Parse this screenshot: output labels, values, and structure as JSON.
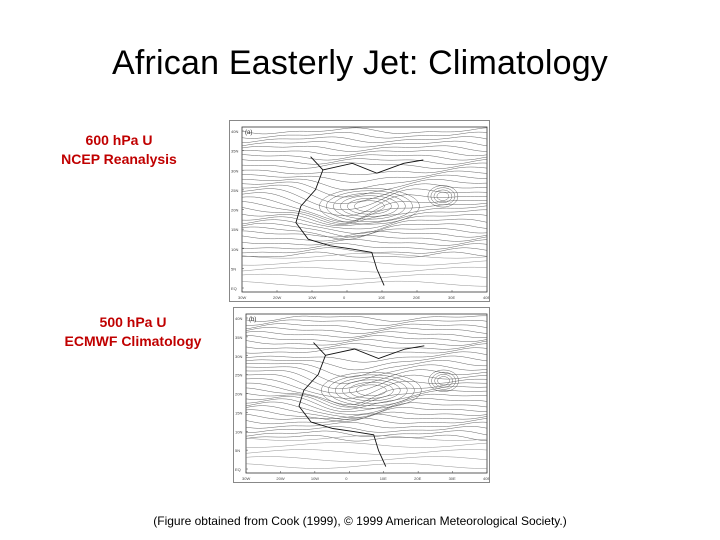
{
  "slide": {
    "title": "African Easterly Jet: Climatology",
    "caption": "(Figure obtained from Cook (1999), © 1999 American Meteorological Society.)"
  },
  "panels": [
    {
      "label_line1": "600 hPa U",
      "label_line2": "NCEP Reanalysis",
      "panel_tag": "(a)",
      "y_ticks": [
        "40N",
        "35N",
        "30N",
        "25N",
        "20N",
        "15N",
        "10N",
        "5N",
        "EQ"
      ],
      "x_ticks": [
        "30W",
        "20W",
        "10W",
        "0",
        "10E",
        "20E",
        "30E",
        "40E"
      ]
    },
    {
      "label_line1": "500 hPa U",
      "label_line2": "ECMWF Climatology",
      "panel_tag": "(b)",
      "y_ticks": [
        "40N",
        "35N",
        "30N",
        "25N",
        "20N",
        "15N",
        "10N",
        "5N",
        "EQ"
      ],
      "x_ticks": [
        "30W",
        "20W",
        "10W",
        "0",
        "10E",
        "20E",
        "30E",
        "40E"
      ]
    }
  ],
  "colors": {
    "label_red": "#c00000",
    "contour": "#555555"
  }
}
